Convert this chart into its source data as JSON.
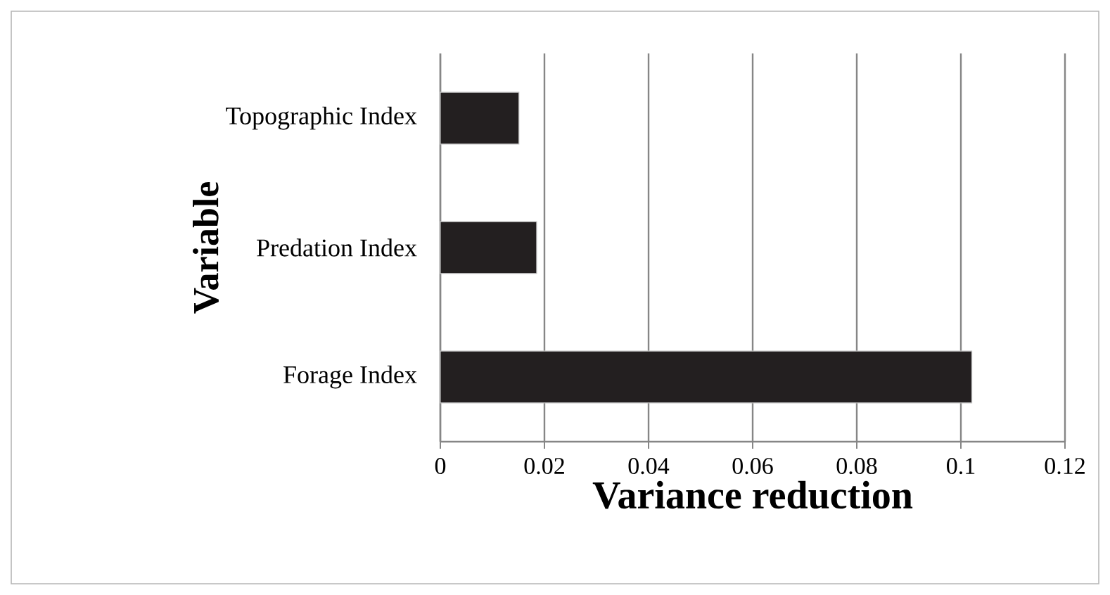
{
  "chart_data": {
    "type": "bar",
    "orientation": "horizontal",
    "xlabel": "Variance reduction",
    "ylabel": "Variable",
    "categories": [
      "Topographic Index",
      "Predation Index",
      "Forage Index"
    ],
    "values": [
      0.0151,
      0.0185,
      0.1021
    ],
    "color": "#231f20",
    "xlim": [
      0,
      0.12
    ],
    "xticks": [
      0,
      0.02,
      0.04,
      0.06,
      0.08,
      0.1,
      0.12
    ],
    "grid": "x"
  }
}
